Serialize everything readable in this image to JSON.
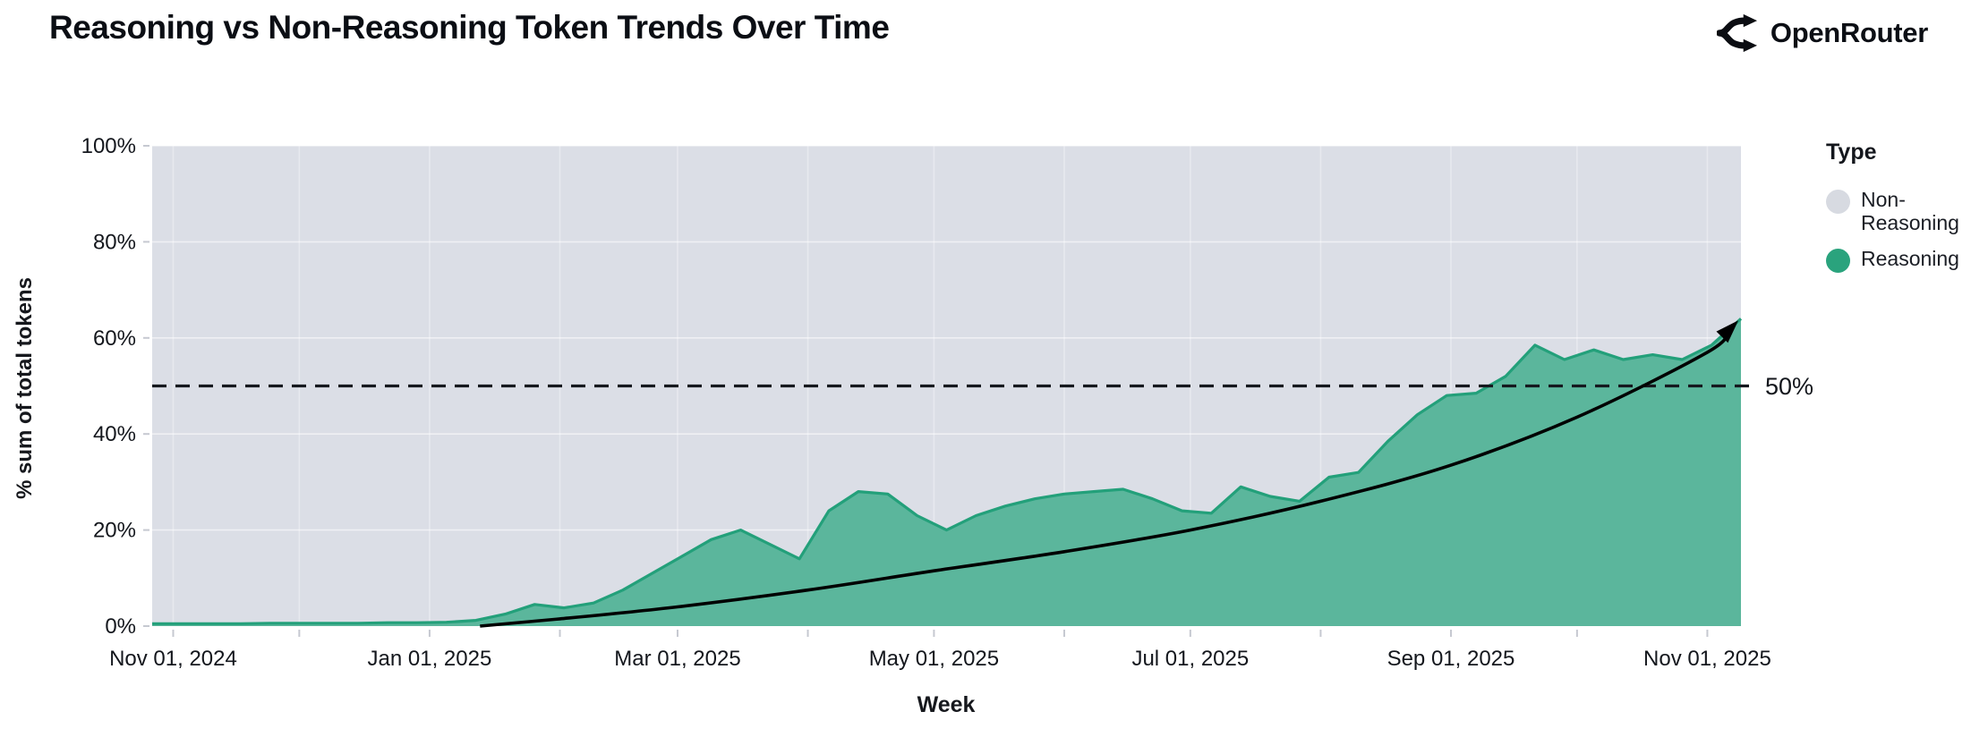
{
  "header": {
    "title": "Reasoning vs Non-Reasoning Token Trends Over Time",
    "brand": {
      "name": "OpenRouter",
      "icon": "openrouter-fork-icon"
    }
  },
  "chart_data": {
    "type": "area",
    "stacking": "percent",
    "title": "Reasoning vs Non-Reasoning Token Trends Over Time",
    "xlabel": "Week",
    "ylabel": "% sum of total tokens",
    "ylim": [
      0,
      100
    ],
    "grid": "on",
    "plot_bg_color": "#dbdee6",
    "y_ticks": [
      {
        "value": 0,
        "label": "0%"
      },
      {
        "value": 20,
        "label": "20%"
      },
      {
        "value": 40,
        "label": "40%"
      },
      {
        "value": 60,
        "label": "60%"
      },
      {
        "value": 80,
        "label": "80%"
      },
      {
        "value": 100,
        "label": "100%"
      }
    ],
    "x_domain": [
      "2024-10-27",
      "2025-11-09"
    ],
    "x_ticks": [
      {
        "date": "2024-11-01",
        "label": "Nov 01, 2024"
      },
      {
        "date": "2024-12-01",
        "label": ""
      },
      {
        "date": "2025-01-01",
        "label": "Jan 01, 2025"
      },
      {
        "date": "2025-02-01",
        "label": ""
      },
      {
        "date": "2025-03-01",
        "label": "Mar 01, 2025"
      },
      {
        "date": "2025-04-01",
        "label": ""
      },
      {
        "date": "2025-05-01",
        "label": "May 01, 2025"
      },
      {
        "date": "2025-06-01",
        "label": ""
      },
      {
        "date": "2025-07-01",
        "label": "Jul 01, 2025"
      },
      {
        "date": "2025-08-01",
        "label": ""
      },
      {
        "date": "2025-09-01",
        "label": "Sep 01, 2025"
      },
      {
        "date": "2025-10-01",
        "label": ""
      },
      {
        "date": "2025-11-01",
        "label": "Nov 01, 2025"
      }
    ],
    "legend": {
      "title": "Type",
      "position": "right",
      "entries": [
        {
          "label": "Non-Reasoning",
          "color": "#d7dae1"
        },
        {
          "label": "Reasoning",
          "color": "#2aa37d"
        }
      ]
    },
    "series": [
      {
        "name": "Reasoning",
        "fill_color": "#5bb69c",
        "line_color": "#23a07a",
        "points": [
          [
            "2024-10-27",
            0.5
          ],
          [
            "2024-11-03",
            0.5
          ],
          [
            "2024-11-10",
            0.5
          ],
          [
            "2024-11-17",
            0.5
          ],
          [
            "2024-11-24",
            0.6
          ],
          [
            "2024-12-01",
            0.6
          ],
          [
            "2024-12-08",
            0.6
          ],
          [
            "2024-12-15",
            0.6
          ],
          [
            "2024-12-22",
            0.7
          ],
          [
            "2024-12-29",
            0.7
          ],
          [
            "2025-01-05",
            0.8
          ],
          [
            "2025-01-12",
            1.2
          ],
          [
            "2025-01-19",
            2.5
          ],
          [
            "2025-01-26",
            4.5
          ],
          [
            "2025-02-02",
            3.8
          ],
          [
            "2025-02-09",
            4.8
          ],
          [
            "2025-02-16",
            7.5
          ],
          [
            "2025-02-23",
            11
          ],
          [
            "2025-03-02",
            14.5
          ],
          [
            "2025-03-09",
            18
          ],
          [
            "2025-03-16",
            20
          ],
          [
            "2025-03-23",
            17
          ],
          [
            "2025-03-30",
            14
          ],
          [
            "2025-04-06",
            24
          ],
          [
            "2025-04-13",
            28
          ],
          [
            "2025-04-20",
            27.5
          ],
          [
            "2025-04-27",
            23
          ],
          [
            "2025-05-04",
            20
          ],
          [
            "2025-05-11",
            23
          ],
          [
            "2025-05-18",
            25
          ],
          [
            "2025-05-25",
            26.5
          ],
          [
            "2025-06-01",
            27.5
          ],
          [
            "2025-06-08",
            28
          ],
          [
            "2025-06-15",
            28.5
          ],
          [
            "2025-06-22",
            26.5
          ],
          [
            "2025-06-29",
            24
          ],
          [
            "2025-07-06",
            23.5
          ],
          [
            "2025-07-13",
            29
          ],
          [
            "2025-07-20",
            27
          ],
          [
            "2025-07-27",
            26
          ],
          [
            "2025-08-03",
            31
          ],
          [
            "2025-08-10",
            32
          ],
          [
            "2025-08-17",
            38.5
          ],
          [
            "2025-08-24",
            44
          ],
          [
            "2025-08-31",
            48
          ],
          [
            "2025-09-07",
            48.5
          ],
          [
            "2025-09-14",
            52
          ],
          [
            "2025-09-21",
            58.5
          ],
          [
            "2025-09-28",
            55.5
          ],
          [
            "2025-10-05",
            57.5
          ],
          [
            "2025-10-12",
            55.5
          ],
          [
            "2025-10-19",
            56.5
          ],
          [
            "2025-10-26",
            55.5
          ],
          [
            "2025-11-02",
            58.5
          ],
          [
            "2025-11-09",
            64
          ]
        ]
      },
      {
        "name": "Non-Reasoning",
        "fill_color": "#dbdee6",
        "note": "remainder to 100% (stacked above Reasoning)"
      }
    ],
    "annotations": {
      "fifty_line": {
        "y": 50,
        "label": "50%",
        "style": "dashed",
        "color": "#15181e"
      },
      "trend_arrow": {
        "color": "#000000",
        "points": [
          [
            "2025-01-13",
            0
          ],
          [
            "2025-02-01",
            1.5
          ],
          [
            "2025-03-01",
            4
          ],
          [
            "2025-04-01",
            7.5
          ],
          [
            "2025-05-01",
            11.5
          ],
          [
            "2025-06-01",
            15.5
          ],
          [
            "2025-07-01",
            20
          ],
          [
            "2025-08-01",
            26
          ],
          [
            "2025-09-01",
            33.5
          ],
          [
            "2025-10-01",
            43.5
          ],
          [
            "2025-11-01",
            57
          ],
          [
            "2025-11-06",
            61.5
          ]
        ]
      }
    }
  }
}
